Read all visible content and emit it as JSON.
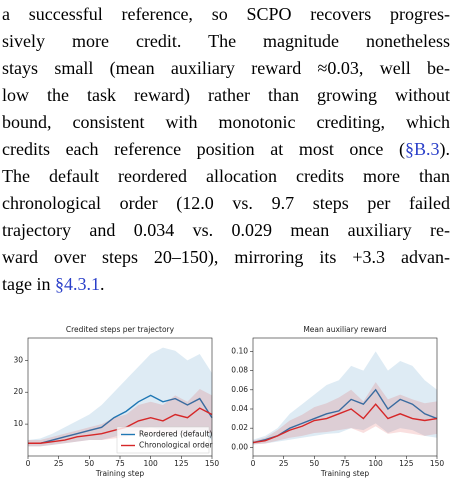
{
  "paragraph": [
    [
      "a successful reference, so SCPO recovers progres-"
    ],
    [
      "sively more credit.  The magnitude nonetheless"
    ],
    [
      "stays small (mean auxiliary reward ≈0.03, well be-"
    ],
    [
      "low the task reward) rather than growing without"
    ],
    [
      "bound, consistent with monotonic crediting, which"
    ],
    [
      "credits each reference position at most once (",
      "§B.3",
      ")."
    ],
    [
      "The default reordered allocation credits more than"
    ],
    [
      "chronological order (12.0 vs. 9.7 steps per failed"
    ],
    [
      "trajectory and 0.034 vs. 0.029 mean auxiliary re-"
    ],
    [
      "ward over steps 20–150), mirroring its +3.3 advan-"
    ],
    [
      "tage in ",
      "§4.3.1",
      "."
    ]
  ],
  "chart_data": [
    {
      "type": "line",
      "title": "Credited steps per trajectory",
      "x_label": "Training step",
      "x": [
        0,
        10,
        20,
        30,
        40,
        50,
        60,
        70,
        80,
        90,
        100,
        110,
        120,
        130,
        140,
        150
      ],
      "xlim": [
        0,
        150
      ],
      "xticks": [
        0,
        25,
        50,
        75,
        100,
        125,
        150
      ],
      "ylim": [
        0,
        37
      ],
      "yticks": [
        10,
        20,
        30
      ],
      "legend": "lower right",
      "series": [
        {
          "name": "Reordered (default)",
          "color": "#1f77b4",
          "values": [
            4,
            4,
            5,
            6,
            7,
            8,
            9,
            12,
            14,
            17,
            19,
            17,
            18,
            16,
            18,
            12
          ],
          "lower": [
            3,
            3,
            3.5,
            4,
            4.5,
            5,
            5,
            6,
            7,
            8,
            9,
            8,
            8,
            7,
            8,
            5
          ],
          "upper": [
            5,
            5.5,
            7,
            9,
            11,
            13,
            16,
            20,
            24,
            28,
            32,
            34,
            33,
            30,
            32,
            26
          ]
        },
        {
          "name": "Chronological order",
          "color": "#d62728",
          "values": [
            4,
            4,
            4.5,
            5,
            6,
            6.5,
            7,
            8,
            9,
            11,
            12,
            11,
            13,
            12,
            15,
            13
          ],
          "lower": [
            3,
            3,
            3.5,
            4,
            4.5,
            5,
            5,
            5.5,
            6,
            7,
            7,
            6.5,
            7,
            6.5,
            8,
            7
          ],
          "upper": [
            5,
            5,
            6,
            7,
            8,
            9,
            10,
            12,
            13,
            16,
            17,
            16,
            19,
            17,
            21,
            19
          ]
        }
      ]
    },
    {
      "type": "line",
      "title": "Mean auxiliary reward",
      "x_label": "Training step",
      "x": [
        0,
        10,
        20,
        30,
        40,
        50,
        60,
        70,
        80,
        90,
        100,
        110,
        120,
        130,
        140,
        150
      ],
      "xlim": [
        0,
        150
      ],
      "xticks": [
        0,
        25,
        50,
        75,
        100,
        125,
        150
      ],
      "ylim": [
        -0.009,
        0.114
      ],
      "yticks": [
        {
          "value": 0,
          "label": "0.00"
        },
        0.02,
        0.04,
        0.06,
        0.08,
        {
          "value": 0.1,
          "label": "0.10"
        }
      ],
      "series": [
        {
          "color": "#1f77b4",
          "values": [
            0.005,
            0.008,
            0.012,
            0.02,
            0.025,
            0.03,
            0.035,
            0.038,
            0.05,
            0.045,
            0.06,
            0.04,
            0.05,
            0.045,
            0.035,
            0.03
          ],
          "lower": [
            0.003,
            0.004,
            0.006,
            0.008,
            0.01,
            0.012,
            0.014,
            0.015,
            0.02,
            0.018,
            0.025,
            0.015,
            0.02,
            0.018,
            0.012,
            0.01
          ],
          "upper": [
            0.008,
            0.012,
            0.02,
            0.035,
            0.045,
            0.055,
            0.065,
            0.07,
            0.085,
            0.08,
            0.1,
            0.08,
            0.09,
            0.085,
            0.07,
            0.06
          ]
        },
        {
          "color": "#d62728",
          "values": [
            0.005,
            0.007,
            0.012,
            0.018,
            0.022,
            0.028,
            0.03,
            0.035,
            0.04,
            0.03,
            0.045,
            0.03,
            0.035,
            0.03,
            0.028,
            0.03
          ],
          "lower": [
            0.003,
            0.004,
            0.007,
            0.01,
            0.012,
            0.015,
            0.016,
            0.018,
            0.02,
            0.015,
            0.022,
            0.014,
            0.016,
            0.014,
            0.012,
            0.014
          ],
          "upper": [
            0.007,
            0.01,
            0.018,
            0.028,
            0.034,
            0.042,
            0.046,
            0.052,
            0.06,
            0.048,
            0.068,
            0.05,
            0.055,
            0.05,
            0.046,
            0.048
          ]
        }
      ]
    }
  ]
}
